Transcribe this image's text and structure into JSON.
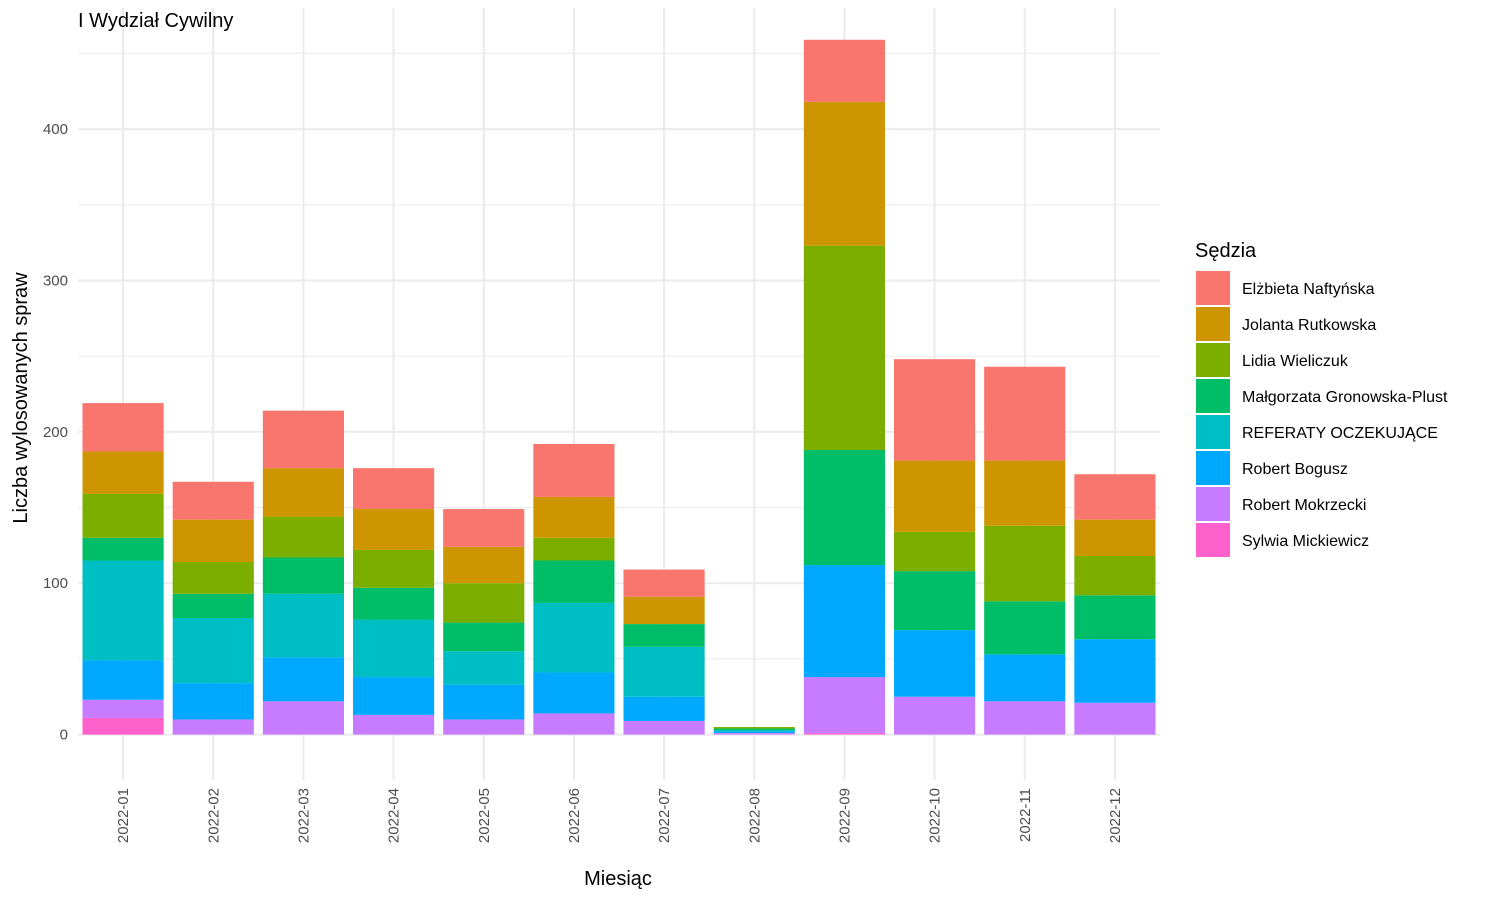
{
  "chart_data": {
    "type": "bar",
    "stacked": true,
    "title": "I Wydział Cywilny",
    "xlabel": "Miesiąc",
    "ylabel": "Liczba wylosowanych spraw",
    "ylim": [
      -30,
      480
    ],
    "yticks": [
      0,
      100,
      200,
      300,
      400
    ],
    "grid": true,
    "legend_title": "Sędzia",
    "legend_position": "right",
    "categories": [
      "2022-01",
      "2022-02",
      "2022-03",
      "2022-04",
      "2022-05",
      "2022-06",
      "2022-07",
      "2022-08",
      "2022-09",
      "2022-10",
      "2022-11",
      "2022-12"
    ],
    "series": [
      {
        "name": "Elżbieta Naftyńska",
        "color": "#F8766D",
        "values": [
          32,
          25,
          38,
          27,
          25,
          35,
          18,
          0,
          41,
          67,
          62,
          30
        ]
      },
      {
        "name": "Jolanta Rutkowska",
        "color": "#CD9600",
        "values": [
          28,
          28,
          32,
          27,
          24,
          27,
          18,
          0,
          95,
          47,
          43,
          24
        ]
      },
      {
        "name": "Lidia Wieliczuk",
        "color": "#7CAE00",
        "values": [
          29,
          21,
          27,
          25,
          26,
          15,
          0,
          1,
          135,
          26,
          50,
          26
        ]
      },
      {
        "name": "Małgorzata Gronowska-Plust",
        "color": "#00BE67",
        "values": [
          15,
          16,
          24,
          21,
          19,
          28,
          15,
          1,
          76,
          39,
          35,
          29
        ]
      },
      {
        "name": "REFERATY OCZEKUJĄCE",
        "color": "#00BFC4",
        "values": [
          66,
          43,
          42,
          38,
          22,
          46,
          33,
          1,
          0,
          0,
          0,
          0
        ]
      },
      {
        "name": "Robert Bogusz",
        "color": "#00A9FF",
        "values": [
          26,
          24,
          29,
          25,
          23,
          27,
          16,
          1,
          74,
          44,
          31,
          42
        ]
      },
      {
        "name": "Robert Mokrzecki",
        "color": "#C77CFF",
        "values": [
          12,
          10,
          22,
          13,
          10,
          14,
          9,
          1,
          37,
          25,
          22,
          21
        ]
      },
      {
        "name": "Sylwia Mickiewicz",
        "color": "#FF61CC",
        "values": [
          11,
          0,
          0,
          0,
          0,
          0,
          0,
          0,
          1,
          0,
          0,
          0
        ]
      }
    ]
  }
}
